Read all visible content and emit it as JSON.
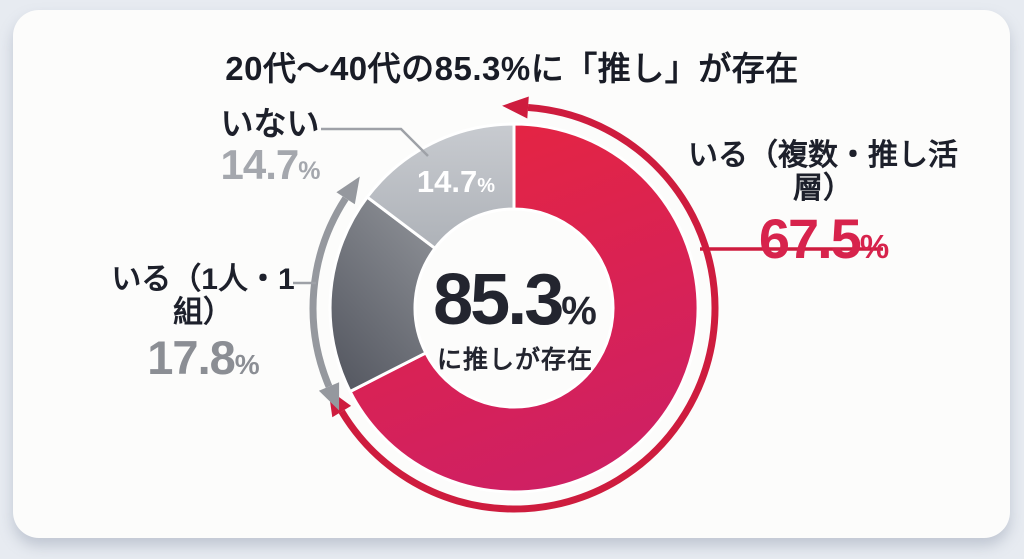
{
  "title": "20代〜40代の85.3%に「推し」が存在",
  "percent_sign": "%",
  "center": {
    "value": "85.3",
    "caption": "に推しが存在"
  },
  "chart_data": {
    "type": "pie",
    "subtype": "donut",
    "title": "20代〜40代の85.3%に「推し」が存在",
    "start_angle_deg": 0,
    "direction": "clockwise",
    "total": 100,
    "center_value": "85.3%",
    "center_caption": "に推しが存在",
    "segments": [
      {
        "label": "いる（複数・推し活層）",
        "value": 67.5,
        "color_start": "#e62540",
        "color_end": "#cf2063",
        "value_text_color": "#d7234c",
        "arrow": true,
        "arrow_color": "#ce1c3e"
      },
      {
        "label": "いる（1人・1組）",
        "value": 17.8,
        "color_start": "#8d9096",
        "color_end": "#565962",
        "value_text_color": "#8b8e94",
        "arrow": true,
        "arrow_color": "#95989e"
      },
      {
        "label": "いない",
        "value": 14.7,
        "color_start": "#c8cbd0",
        "color_end": "#aeb2b8",
        "value_text_color": "#a4a7ad",
        "inner_value_label": "14.7%",
        "arrow": false
      }
    ]
  },
  "colors": {
    "background": "#e7ebf1",
    "card": "#fcfcfb",
    "ink": "#1d202b",
    "red": "#d7234c",
    "gray_text": "#9a9da3",
    "leader_line": "#9ea1a7",
    "white": "#ffffff"
  }
}
